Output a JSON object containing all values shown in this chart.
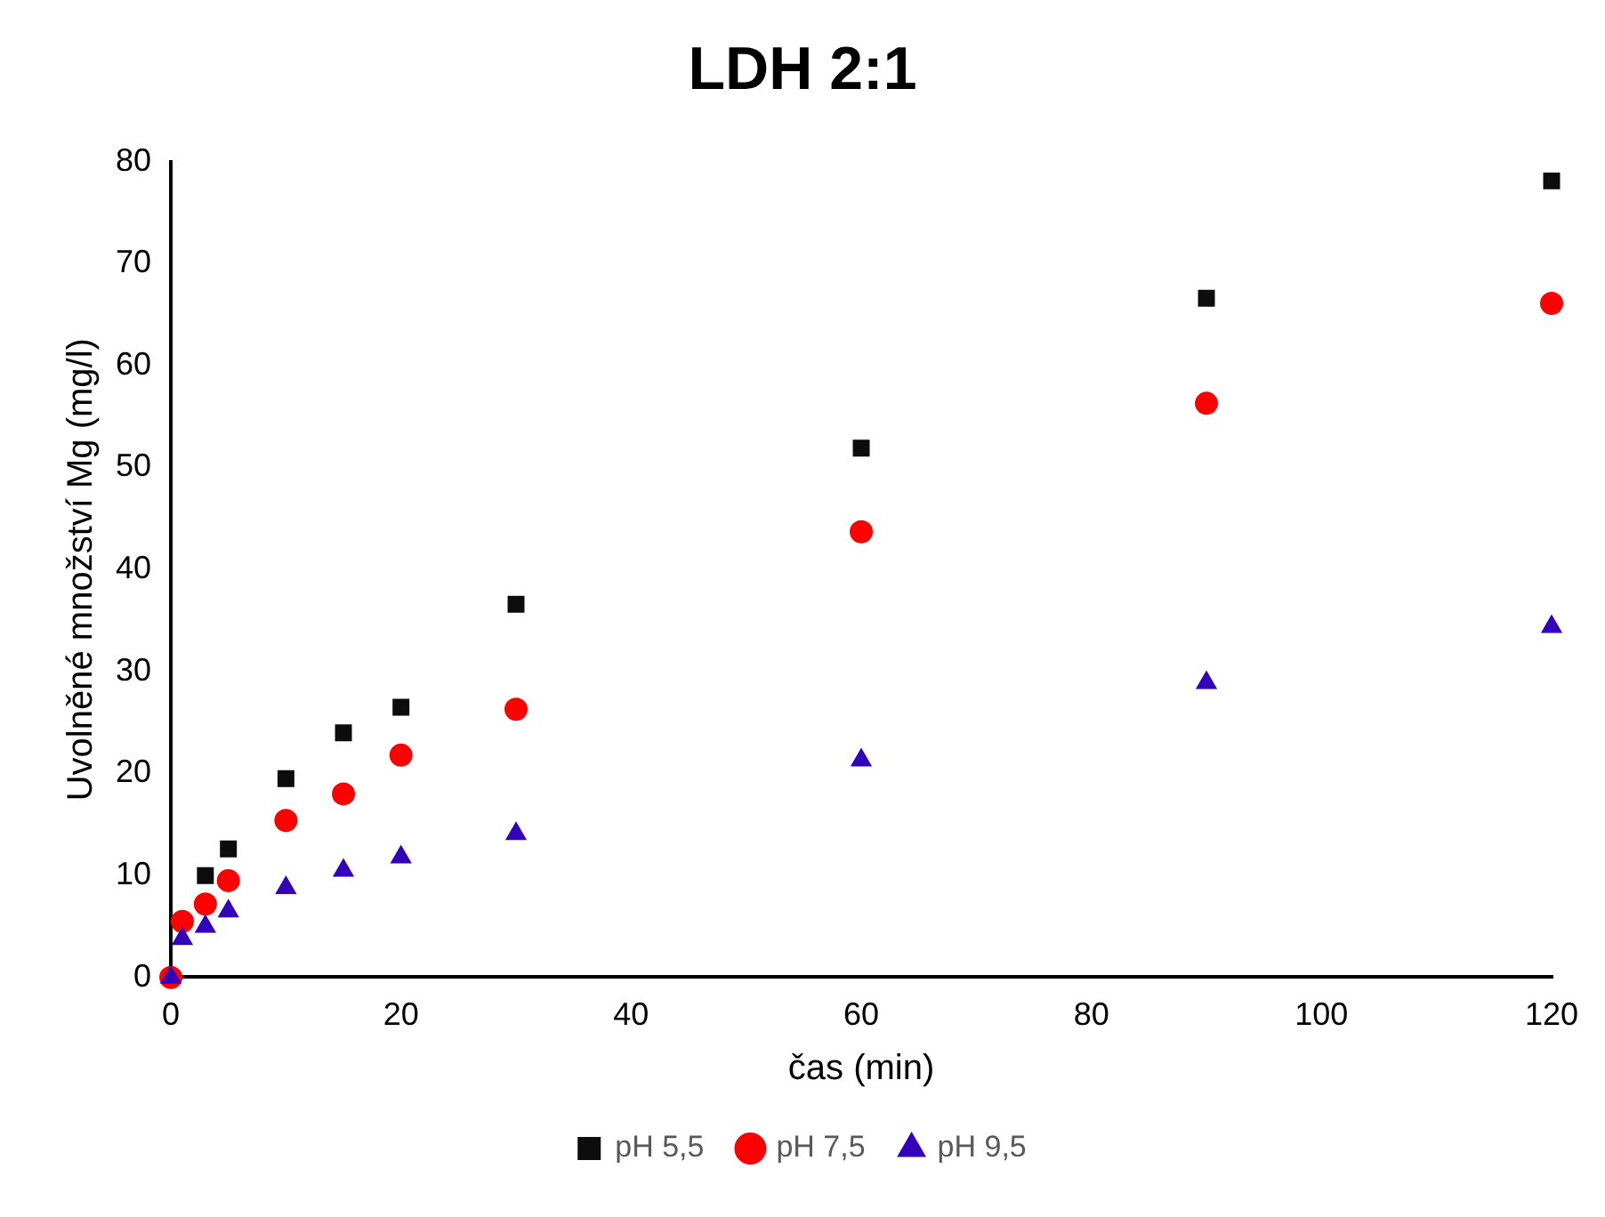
{
  "chart_data": {
    "type": "scatter",
    "title": "LDH 2:1",
    "xlabel": "čas (min)",
    "ylabel": "Uvolněné množství Mg (mg/l)",
    "xlim": [
      0,
      120
    ],
    "xticks": [
      0,
      20,
      40,
      60,
      80,
      100,
      120
    ],
    "ylim": [
      0,
      80
    ],
    "yticks": [
      0,
      10,
      20,
      30,
      40,
      50,
      60,
      70,
      80
    ],
    "grid": false,
    "legend": "bottom",
    "series": [
      {
        "name": "pH 5,5",
        "color": "#0d0d0d",
        "marker": "square",
        "x": [
          3,
          5,
          10,
          15,
          20,
          30,
          60,
          90,
          120
        ],
        "values": [
          10,
          12.6,
          19.5,
          24,
          26.5,
          36.6,
          51.9,
          66.6,
          78.1
        ]
      },
      {
        "name": "pH 7,5",
        "color": "#ff0000",
        "marker": "circle",
        "x": [
          0,
          1,
          3,
          5,
          10,
          15,
          20,
          30,
          60,
          90,
          120
        ],
        "values": [
          0,
          5.5,
          7.2,
          9.5,
          15.4,
          18,
          21.8,
          26.3,
          43.7,
          56.3,
          66.1
        ]
      },
      {
        "name": "pH 9,5",
        "color": "#3300bb",
        "marker": "triangle",
        "x": [
          0,
          1,
          3,
          5,
          10,
          15,
          20,
          30,
          60,
          90,
          120
        ],
        "values": [
          0,
          3.8,
          5,
          6.5,
          8.8,
          10.5,
          11.8,
          14.1,
          21.3,
          28.9,
          34.4
        ]
      }
    ]
  }
}
